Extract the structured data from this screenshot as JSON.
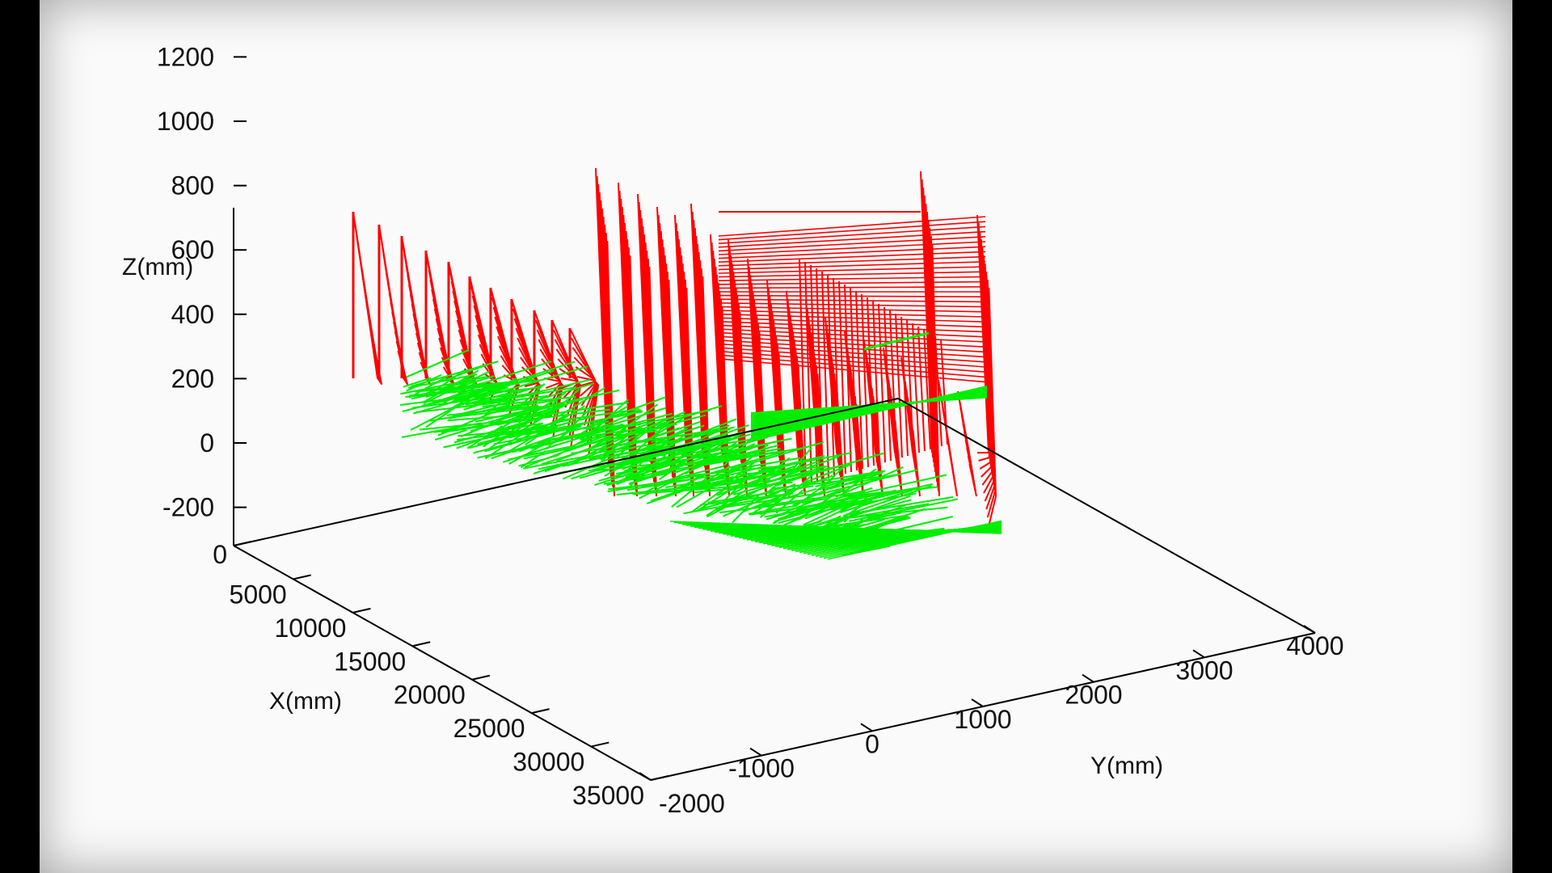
{
  "chart_data": {
    "type": "line3d",
    "title": "",
    "xlabel": "X(mm)",
    "ylabel": "Y(mm)",
    "zlabel": "Z(mm)",
    "xlim": [
      0,
      35000
    ],
    "ylim": [
      -2000,
      4000
    ],
    "zlim": [
      -200,
      1200
    ],
    "x_ticks": [
      0,
      5000,
      10000,
      15000,
      20000,
      25000,
      30000,
      35000
    ],
    "y_ticks": [
      -2000,
      -1000,
      0,
      1000,
      2000,
      3000,
      4000
    ],
    "z_ticks": [
      -200,
      0,
      200,
      400,
      600,
      800,
      1000,
      1200
    ],
    "x_tick_labels": [
      "0",
      "5000",
      "10000",
      "15000",
      "20000",
      "25000",
      "30000",
      "35000"
    ],
    "y_tick_labels": [
      "-2000",
      "-1000",
      "0",
      "1000",
      "2000",
      "3000",
      "4000"
    ],
    "z_tick_labels": [
      "-200",
      "0",
      "200",
      "400",
      "600",
      "800",
      "1000",
      "1200"
    ],
    "grid": false,
    "legend": "none",
    "series": [
      {
        "color": "#ff0000"
      },
      {
        "color": "#00ee00"
      }
    ]
  }
}
